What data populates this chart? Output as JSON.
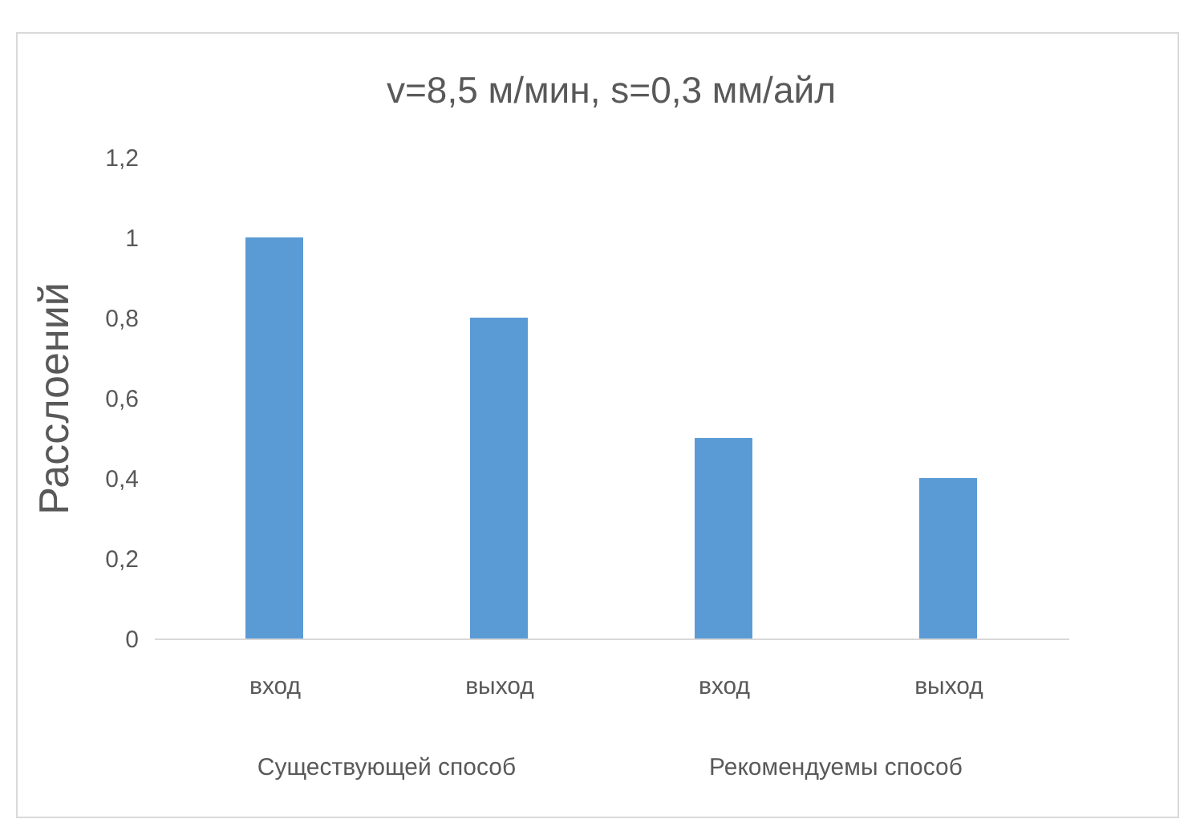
{
  "chart_data": {
    "type": "bar",
    "title": "v=8,5 м/мин, s=0,3 мм/айл",
    "ylabel": "Расслоений",
    "categories": [
      "вход",
      "выход",
      "вход",
      "выход"
    ],
    "values": [
      1,
      0.8,
      0.5,
      0.4
    ],
    "color": "#5b9bd5",
    "ylim": [
      0,
      1.2
    ],
    "yticks": [
      {
        "value": 0,
        "label": "0"
      },
      {
        "value": 0.2,
        "label": "0,2"
      },
      {
        "value": 0.4,
        "label": "0,4"
      },
      {
        "value": 0.6,
        "label": "0,6"
      },
      {
        "value": 0.8,
        "label": "0,8"
      },
      {
        "value": 1,
        "label": "1"
      },
      {
        "value": 1.2,
        "label": "1,2"
      }
    ],
    "annotations": [
      "Существующей способ",
      "Рекомендуемы способ"
    ],
    "grid": false
  }
}
